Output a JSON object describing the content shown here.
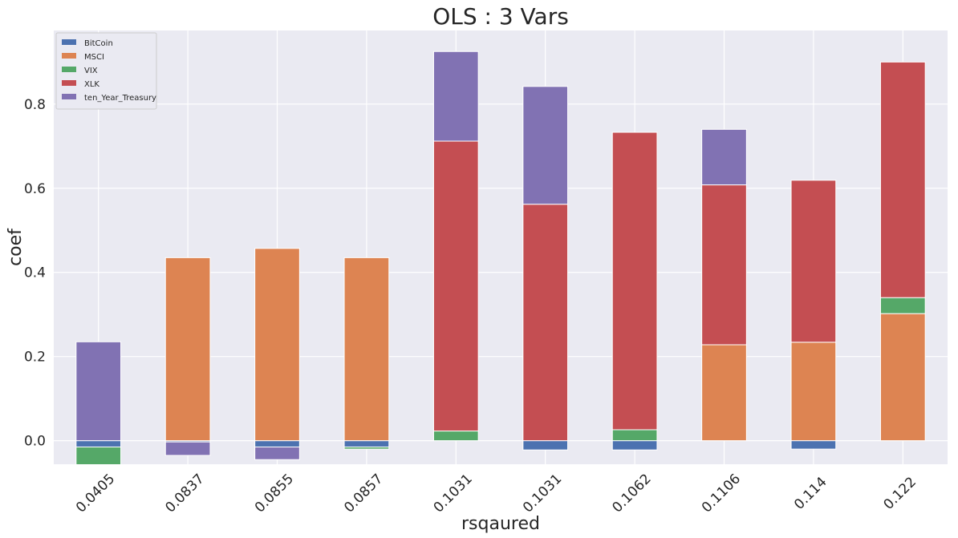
{
  "chart_data": {
    "type": "bar",
    "stacked": true,
    "title": "OLS : 3 Vars",
    "xlabel": "rsqaured",
    "ylabel": "coef",
    "categories": [
      "0.0405",
      "0.0837",
      "0.0855",
      "0.0857",
      "0.1031",
      "0.1031",
      "0.1062",
      "0.1106",
      "0.114",
      "0.122"
    ],
    "ylim": [
      -0.056,
      0.975
    ],
    "yticks": [
      "0.0",
      "0.2",
      "0.4",
      "0.6",
      "0.8"
    ],
    "grid": true,
    "legend_position": "top-left",
    "series": [
      {
        "name": "BitCoin",
        "color": "#4c72b0",
        "values": [
          -0.015,
          -0.003,
          -0.015,
          -0.015,
          0.0,
          -0.022,
          -0.022,
          0.0,
          -0.02,
          0.0
        ]
      },
      {
        "name": "MSCI",
        "color": "#dd8452",
        "values": [
          0.0,
          0.435,
          0.457,
          0.435,
          0.0,
          0.0,
          0.0,
          0.228,
          0.234,
          0.302
        ]
      },
      {
        "name": "VIX",
        "color": "#55a868",
        "values": [
          -0.045,
          0.0,
          0.0,
          -0.005,
          0.023,
          0.0,
          0.026,
          0.0,
          0.0,
          0.038
        ]
      },
      {
        "name": "XLK",
        "color": "#c44e52",
        "values": [
          0.0,
          0.0,
          0.0,
          0.0,
          0.689,
          0.562,
          0.707,
          0.38,
          0.385,
          0.56
        ]
      },
      {
        "name": "ten_Year_Treasury",
        "color": "#8172b3",
        "values": [
          0.235,
          -0.032,
          -0.03,
          0.0,
          0.213,
          0.28,
          0.0,
          0.132,
          0.0,
          0.0
        ]
      }
    ]
  }
}
